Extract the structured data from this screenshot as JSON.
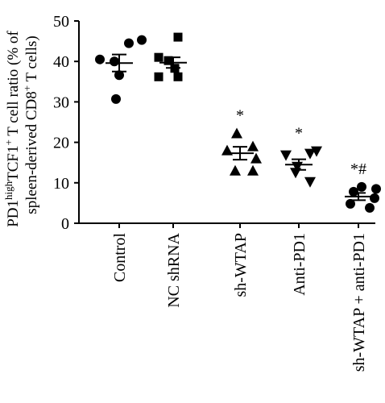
{
  "chart_data": {
    "type": "scatter",
    "ylabel_parts": [
      {
        "text": "PD1",
        "sup": false
      },
      {
        "text": "high",
        "sup": true
      },
      {
        "text": "TCF1",
        "sup": false
      },
      {
        "text": "+",
        "sup": true
      },
      {
        "text": " T cell ratio (% of",
        "sup": false
      }
    ],
    "ylabel2_parts": [
      {
        "text": "spleen-derived CD8",
        "sup": false
      },
      {
        "text": "+",
        "sup": true
      },
      {
        "text": " T cells)",
        "sup": false
      }
    ],
    "ylim": [
      0,
      50
    ],
    "yticks": [
      0,
      10,
      20,
      30,
      40,
      50
    ],
    "categories": [
      "Control",
      "NC shRNA",
      "sh-WTAP",
      "Anti-PD1",
      "sh-WTAP + anti-PD1"
    ],
    "groups": [
      {
        "label": "Control",
        "marker": "circle",
        "points": [
          40.0,
          44.5,
          45.3,
          40.5,
          36.6,
          30.7
        ],
        "mean": 39.6,
        "sem": 2.1,
        "annotation": ""
      },
      {
        "label": "NC shRNA",
        "marker": "square",
        "points": [
          41.0,
          46.0,
          38.3,
          40.2,
          36.2,
          36.2
        ],
        "mean": 39.7,
        "sem": 1.3,
        "annotation": ""
      },
      {
        "label": "sh-WTAP",
        "marker": "triangle-up",
        "points": [
          22.2,
          19.0,
          18.0,
          16.0,
          13.0,
          13.0
        ],
        "mean": 17.3,
        "sem": 1.6,
        "annotation": "*"
      },
      {
        "label": "Anti-PD1",
        "marker": "triangle-down",
        "points": [
          16.8,
          17.2,
          17.8,
          14.0,
          12.5,
          10.2
        ],
        "mean": 14.5,
        "sem": 1.3,
        "annotation": "*"
      },
      {
        "label": "sh-WTAP + anti-PD1",
        "marker": "circle",
        "points": [
          9.0,
          8.5,
          7.8,
          6.2,
          4.8,
          3.8
        ],
        "mean": 6.6,
        "sem": 0.9,
        "annotation": "*#"
      }
    ]
  }
}
